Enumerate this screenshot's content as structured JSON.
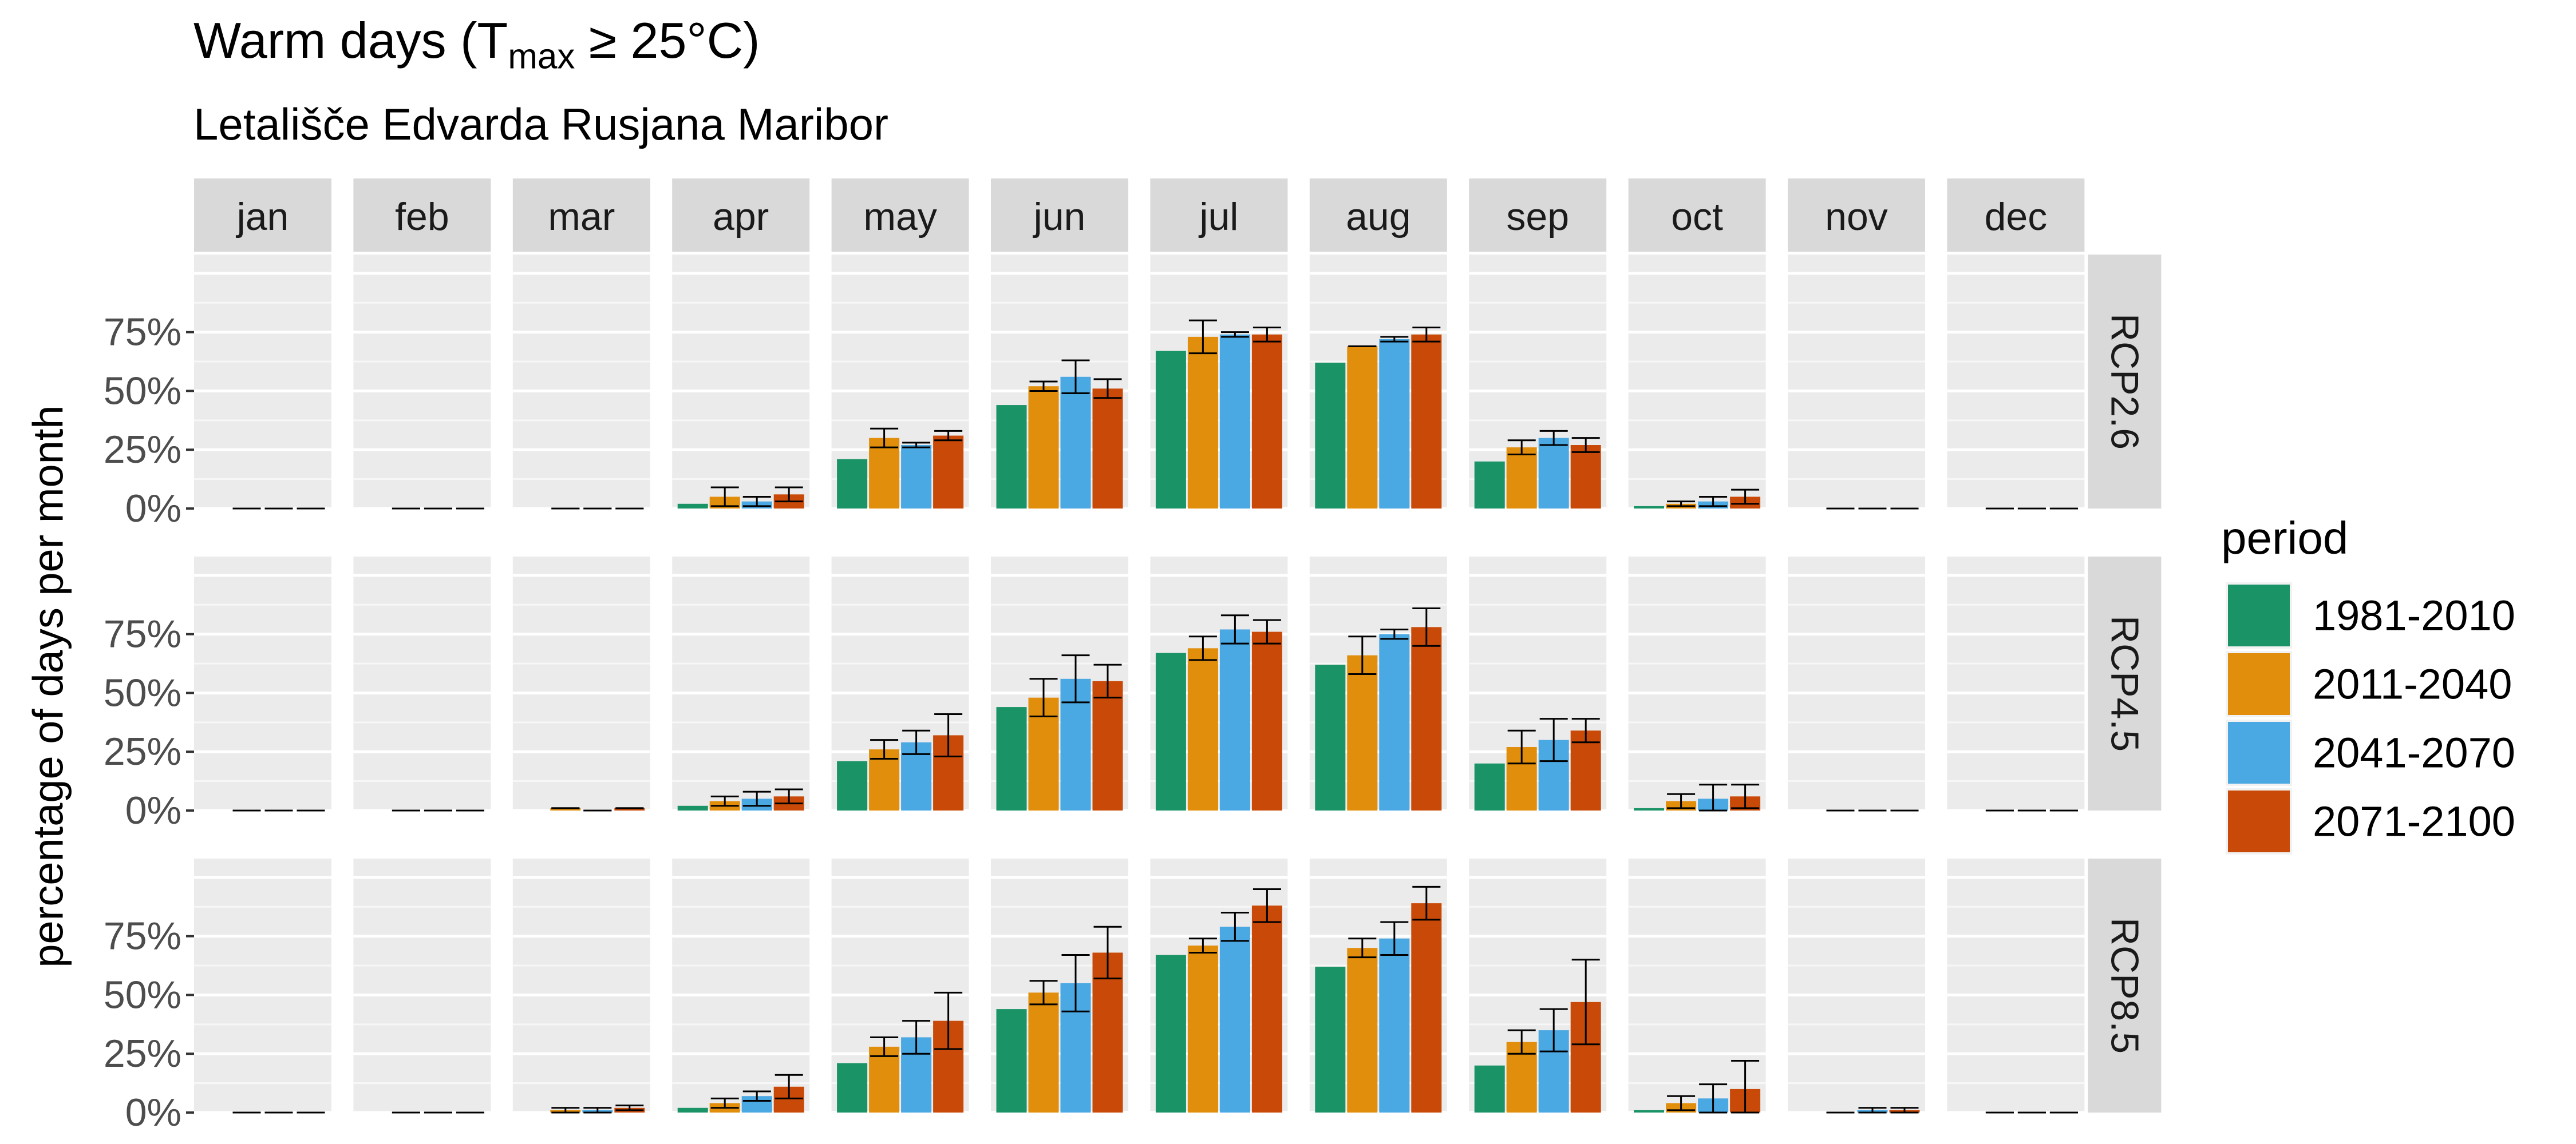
{
  "chart_data": {
    "type": "bar",
    "title_main": "Warm days (T",
    "title_sub": "max",
    "title_end": " ≥ 25°C)",
    "subtitle": "Letališče Edvarda Rusjana Maribor",
    "ylabel": "percentage of days per month",
    "y_ticks": [
      "0%",
      "25%",
      "50%",
      "75%"
    ],
    "ylim": [
      0,
      100
    ],
    "legend_title": "period",
    "legend_position": "right",
    "months": [
      "jan",
      "feb",
      "mar",
      "apr",
      "may",
      "jun",
      "jul",
      "aug",
      "sep",
      "oct",
      "nov",
      "dec"
    ],
    "periods": [
      {
        "name": "1981-2010",
        "color": "#1a9366"
      },
      {
        "name": "2011-2040",
        "color": "#e08e0b"
      },
      {
        "name": "2041-2070",
        "color": "#4aa8e3"
      },
      {
        "name": "2071-2100",
        "color": "#c94a08"
      }
    ],
    "scenarios": [
      {
        "name": "RCP2.6",
        "values": [
          [
            0,
            0,
            0,
            0
          ],
          [
            0,
            0,
            0,
            0
          ],
          [
            0,
            0,
            0,
            0
          ],
          [
            2,
            5,
            3,
            6
          ],
          [
            21,
            30,
            27,
            31
          ],
          [
            44,
            52,
            56,
            51
          ],
          [
            67,
            73,
            74,
            74
          ],
          [
            62,
            69,
            72,
            74
          ],
          [
            20,
            26,
            30,
            27
          ],
          [
            1,
            2,
            3,
            5
          ],
          [
            0,
            0,
            0,
            0
          ],
          [
            0,
            0,
            0,
            0
          ]
        ],
        "errors": [
          [
            null,
            0,
            0,
            0
          ],
          [
            null,
            0,
            0,
            0
          ],
          [
            null,
            0,
            0,
            0
          ],
          [
            null,
            4,
            2,
            3
          ],
          [
            null,
            4,
            1,
            2
          ],
          [
            null,
            2,
            7,
            4
          ],
          [
            null,
            7,
            1,
            3
          ],
          [
            null,
            0,
            1,
            3
          ],
          [
            null,
            3,
            3,
            3
          ],
          [
            null,
            1,
            2,
            3
          ],
          [
            null,
            0,
            0,
            0
          ],
          [
            null,
            0,
            0,
            0
          ]
        ]
      },
      {
        "name": "RCP4.5",
        "values": [
          [
            0,
            0,
            0,
            0
          ],
          [
            0,
            0,
            0,
            0
          ],
          [
            0,
            1,
            0,
            1
          ],
          [
            2,
            4,
            5,
            6
          ],
          [
            21,
            26,
            29,
            32
          ],
          [
            44,
            48,
            56,
            55
          ],
          [
            67,
            69,
            77,
            76
          ],
          [
            62,
            66,
            75,
            78
          ],
          [
            20,
            27,
            30,
            34
          ],
          [
            1,
            4,
            5,
            6
          ],
          [
            0,
            0,
            0,
            0
          ],
          [
            0,
            0,
            0,
            0
          ]
        ],
        "errors": [
          [
            null,
            0,
            0,
            0
          ],
          [
            null,
            0,
            0,
            0
          ],
          [
            null,
            0,
            0,
            0
          ],
          [
            null,
            2,
            3,
            3
          ],
          [
            null,
            4,
            5,
            9
          ],
          [
            null,
            8,
            10,
            7
          ],
          [
            null,
            5,
            6,
            5
          ],
          [
            null,
            8,
            2,
            8
          ],
          [
            null,
            7,
            9,
            5
          ],
          [
            null,
            3,
            6,
            5
          ],
          [
            null,
            0,
            0,
            0
          ],
          [
            null,
            0,
            0,
            0
          ]
        ]
      },
      {
        "name": "RCP8.5",
        "values": [
          [
            0,
            0,
            0,
            0
          ],
          [
            0,
            0,
            0,
            0
          ],
          [
            0,
            1,
            1,
            2
          ],
          [
            2,
            4,
            7,
            11
          ],
          [
            21,
            28,
            32,
            39
          ],
          [
            44,
            51,
            55,
            68
          ],
          [
            67,
            71,
            79,
            88
          ],
          [
            62,
            70,
            74,
            89
          ],
          [
            20,
            30,
            35,
            47
          ],
          [
            1,
            4,
            6,
            10
          ],
          [
            0,
            0,
            1,
            1
          ],
          [
            0,
            0,
            0,
            0
          ]
        ],
        "errors": [
          [
            null,
            0,
            0,
            0
          ],
          [
            null,
            0,
            0,
            0
          ],
          [
            null,
            1,
            1,
            1
          ],
          [
            null,
            2,
            2,
            5
          ],
          [
            null,
            4,
            7,
            12
          ],
          [
            null,
            5,
            12,
            11
          ],
          [
            null,
            3,
            6,
            7
          ],
          [
            null,
            4,
            7,
            7
          ],
          [
            null,
            5,
            9,
            18
          ],
          [
            null,
            3,
            6,
            12
          ],
          [
            null,
            0,
            1,
            1
          ],
          [
            null,
            0,
            0,
            0
          ]
        ]
      }
    ]
  }
}
